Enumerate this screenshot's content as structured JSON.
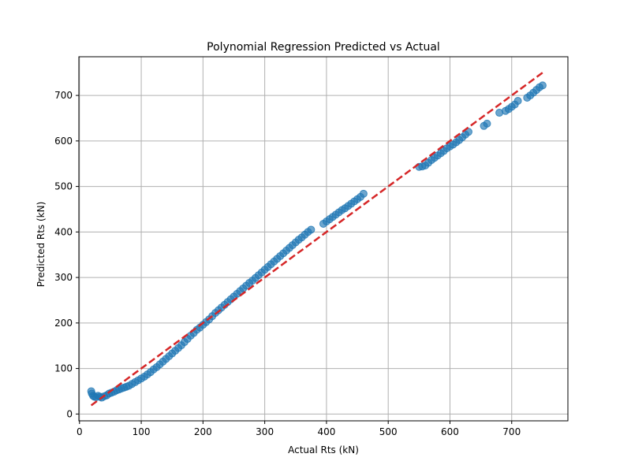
{
  "chart_data": {
    "type": "scatter",
    "title": "Polynomial Regression Predicted vs Actual",
    "xlabel": "Actual Rts (kN)",
    "ylabel": "Predicted Rts (kN)",
    "xlim": [
      -1,
      791
    ],
    "ylim": [
      -15,
      785
    ],
    "xticks": [
      0,
      100,
      200,
      300,
      400,
      500,
      600,
      700
    ],
    "yticks": [
      0,
      100,
      200,
      300,
      400,
      500,
      600,
      700
    ],
    "grid": true,
    "colors": {
      "points": "#1f77b4",
      "reference_line": "#d62728",
      "grid": "#b0b0b0"
    },
    "series": [
      {
        "values_type": "points",
        "points": [
          [
            19,
            50
          ],
          [
            20,
            45
          ],
          [
            22,
            40
          ],
          [
            24,
            38
          ],
          [
            27,
            37
          ],
          [
            30,
            40
          ],
          [
            33,
            38
          ],
          [
            36,
            36
          ],
          [
            40,
            39
          ],
          [
            44,
            41
          ],
          [
            48,
            45
          ],
          [
            52,
            47
          ],
          [
            56,
            49
          ],
          [
            60,
            52
          ],
          [
            64,
            54
          ],
          [
            68,
            56
          ],
          [
            72,
            58
          ],
          [
            76,
            60
          ],
          [
            80,
            62
          ],
          [
            85,
            66
          ],
          [
            90,
            70
          ],
          [
            95,
            74
          ],
          [
            100,
            78
          ],
          [
            105,
            82
          ],
          [
            110,
            87
          ],
          [
            115,
            92
          ],
          [
            120,
            98
          ],
          [
            125,
            103
          ],
          [
            130,
            109
          ],
          [
            135,
            115
          ],
          [
            140,
            121
          ],
          [
            145,
            127
          ],
          [
            150,
            133
          ],
          [
            155,
            139
          ],
          [
            160,
            145
          ],
          [
            165,
            151
          ],
          [
            170,
            158
          ],
          [
            175,
            165
          ],
          [
            180,
            172
          ],
          [
            185,
            178
          ],
          [
            190,
            185
          ],
          [
            195,
            190
          ],
          [
            200,
            196
          ],
          [
            205,
            202
          ],
          [
            210,
            208
          ],
          [
            215,
            215
          ],
          [
            220,
            222
          ],
          [
            225,
            228
          ],
          [
            230,
            234
          ],
          [
            235,
            240
          ],
          [
            240,
            246
          ],
          [
            245,
            252
          ],
          [
            250,
            258
          ],
          [
            255,
            264
          ],
          [
            260,
            270
          ],
          [
            265,
            276
          ],
          [
            270,
            282
          ],
          [
            275,
            288
          ],
          [
            280,
            293
          ],
          [
            285,
            299
          ],
          [
            290,
            305
          ],
          [
            295,
            311
          ],
          [
            300,
            317
          ],
          [
            305,
            323
          ],
          [
            310,
            329
          ],
          [
            315,
            335
          ],
          [
            320,
            341
          ],
          [
            325,
            347
          ],
          [
            330,
            353
          ],
          [
            335,
            359
          ],
          [
            340,
            365
          ],
          [
            345,
            371
          ],
          [
            350,
            377
          ],
          [
            355,
            383
          ],
          [
            360,
            388
          ],
          [
            365,
            394
          ],
          [
            370,
            400
          ],
          [
            375,
            405
          ],
          [
            395,
            418
          ],
          [
            400,
            423
          ],
          [
            405,
            428
          ],
          [
            410,
            433
          ],
          [
            415,
            438
          ],
          [
            420,
            443
          ],
          [
            425,
            448
          ],
          [
            430,
            452
          ],
          [
            435,
            457
          ],
          [
            440,
            462
          ],
          [
            445,
            467
          ],
          [
            450,
            472
          ],
          [
            455,
            477
          ],
          [
            460,
            484
          ],
          [
            550,
            543
          ],
          [
            555,
            544
          ],
          [
            560,
            546
          ],
          [
            565,
            552
          ],
          [
            570,
            558
          ],
          [
            575,
            563
          ],
          [
            580,
            568
          ],
          [
            585,
            573
          ],
          [
            590,
            578
          ],
          [
            595,
            584
          ],
          [
            600,
            588
          ],
          [
            605,
            592
          ],
          [
            610,
            597
          ],
          [
            615,
            602
          ],
          [
            620,
            608
          ],
          [
            625,
            614
          ],
          [
            630,
            620
          ],
          [
            655,
            633
          ],
          [
            660,
            638
          ],
          [
            680,
            662
          ],
          [
            690,
            666
          ],
          [
            695,
            670
          ],
          [
            700,
            675
          ],
          [
            705,
            680
          ],
          [
            710,
            688
          ],
          [
            725,
            695
          ],
          [
            730,
            700
          ],
          [
            735,
            706
          ],
          [
            740,
            712
          ],
          [
            745,
            718
          ],
          [
            750,
            722
          ]
        ]
      }
    ],
    "reference_line": {
      "from": [
        19,
        19
      ],
      "to": [
        751,
        751
      ],
      "style": "dashed"
    }
  }
}
